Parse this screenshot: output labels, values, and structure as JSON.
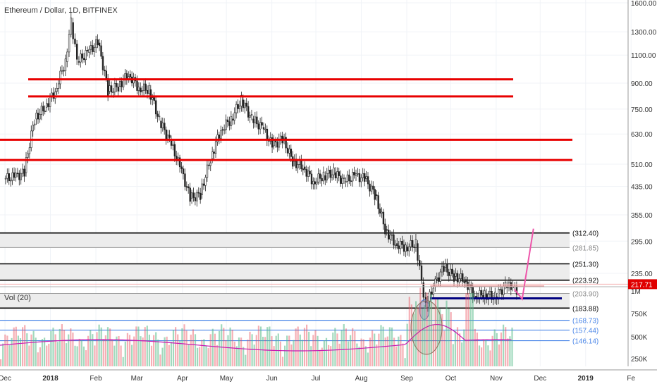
{
  "chart_data": {
    "type": "candlestick",
    "title": "Ethereum / Dollar, 1D, BITFINEX",
    "x_ticks": [
      "Dec",
      "2018",
      "Feb",
      "Mar",
      "Apr",
      "May",
      "Jun",
      "Jul",
      "Aug",
      "Sep",
      "Oct",
      "Nov",
      "Dec",
      "2019",
      "Fe"
    ],
    "price_axis": {
      "scale": "log",
      "ticks": [
        "1600.00",
        "1300.00",
        "1100.00",
        "900.00",
        "750.00",
        "630.00",
        "510.00",
        "435.00",
        "355.00",
        "295.00",
        "235.00"
      ],
      "current_price_label": "217.71"
    },
    "volume_axis": {
      "ticks": [
        "1M",
        "750K",
        "500K",
        "250K"
      ]
    },
    "volume_panel_title": "Vol (20)",
    "price_series": [
      {
        "date": "2017-12-01",
        "o": 460,
        "c": 465
      },
      {
        "date": "2017-12-08",
        "o": 465,
        "c": 480
      },
      {
        "date": "2017-12-15",
        "o": 480,
        "c": 700
      },
      {
        "date": "2017-12-22",
        "o": 700,
        "c": 760
      },
      {
        "date": "2017-12-29",
        "o": 760,
        "c": 850
      },
      {
        "date": "2018-01-05",
        "o": 850,
        "c": 1050
      },
      {
        "date": "2018-01-12",
        "o": 1050,
        "c": 1390
      },
      {
        "date": "2018-01-16",
        "o": 1390,
        "c": 1050
      },
      {
        "date": "2018-01-20",
        "o": 1050,
        "c": 1120
      },
      {
        "date": "2018-01-27",
        "o": 1120,
        "c": 1200
      },
      {
        "date": "2018-02-03",
        "o": 1200,
        "c": 850
      },
      {
        "date": "2018-02-10",
        "o": 850,
        "c": 880
      },
      {
        "date": "2018-02-17",
        "o": 880,
        "c": 960
      },
      {
        "date": "2018-02-24",
        "o": 960,
        "c": 870
      },
      {
        "date": "2018-03-03",
        "o": 870,
        "c": 860
      },
      {
        "date": "2018-03-10",
        "o": 860,
        "c": 690
      },
      {
        "date": "2018-03-17",
        "o": 690,
        "c": 600
      },
      {
        "date": "2018-03-24",
        "o": 600,
        "c": 500
      },
      {
        "date": "2018-03-31",
        "o": 500,
        "c": 400
      },
      {
        "date": "2018-04-07",
        "o": 400,
        "c": 410
      },
      {
        "date": "2018-04-14",
        "o": 410,
        "c": 530
      },
      {
        "date": "2018-04-21",
        "o": 530,
        "c": 650
      },
      {
        "date": "2018-04-28",
        "o": 650,
        "c": 700
      },
      {
        "date": "2018-05-05",
        "o": 700,
        "c": 800
      },
      {
        "date": "2018-05-12",
        "o": 800,
        "c": 700
      },
      {
        "date": "2018-05-19",
        "o": 700,
        "c": 660
      },
      {
        "date": "2018-05-26",
        "o": 660,
        "c": 580
      },
      {
        "date": "2018-06-02",
        "o": 580,
        "c": 610
      },
      {
        "date": "2018-06-09",
        "o": 610,
        "c": 520
      },
      {
        "date": "2018-06-16",
        "o": 520,
        "c": 500
      },
      {
        "date": "2018-06-23",
        "o": 500,
        "c": 450
      },
      {
        "date": "2018-06-30",
        "o": 450,
        "c": 470
      },
      {
        "date": "2018-07-07",
        "o": 470,
        "c": 480
      },
      {
        "date": "2018-07-14",
        "o": 480,
        "c": 450
      },
      {
        "date": "2018-07-21",
        "o": 450,
        "c": 470
      },
      {
        "date": "2018-07-28",
        "o": 470,
        "c": 460
      },
      {
        "date": "2018-08-04",
        "o": 460,
        "c": 410
      },
      {
        "date": "2018-08-11",
        "o": 410,
        "c": 320
      },
      {
        "date": "2018-08-18",
        "o": 320,
        "c": 290
      },
      {
        "date": "2018-08-25",
        "o": 290,
        "c": 283
      },
      {
        "date": "2018-09-01",
        "o": 283,
        "c": 290
      },
      {
        "date": "2018-09-08",
        "o": 290,
        "c": 220
      },
      {
        "date": "2018-09-12",
        "o": 220,
        "c": 185
      },
      {
        "date": "2018-09-15",
        "o": 185,
        "c": 215
      },
      {
        "date": "2018-09-20",
        "o": 215,
        "c": 245
      },
      {
        "date": "2018-09-27",
        "o": 245,
        "c": 230
      },
      {
        "date": "2018-10-04",
        "o": 230,
        "c": 225
      },
      {
        "date": "2018-10-11",
        "o": 225,
        "c": 200
      },
      {
        "date": "2018-10-18",
        "o": 200,
        "c": 203
      },
      {
        "date": "2018-10-25",
        "o": 203,
        "c": 199
      },
      {
        "date": "2018-11-01",
        "o": 199,
        "c": 215
      },
      {
        "date": "2018-11-08",
        "o": 215,
        "c": 212
      },
      {
        "date": "2018-11-12",
        "o": 212,
        "c": 209
      }
    ],
    "horizontal_levels": [
      {
        "label": "312.40",
        "kind": "black"
      },
      {
        "label": "281.85",
        "kind": "gray"
      },
      {
        "label": "251.30",
        "kind": "black"
      },
      {
        "label": "223.92",
        "kind": "black"
      },
      {
        "label": "203.90",
        "kind": "gray"
      },
      {
        "label": "183.88",
        "kind": "black"
      },
      {
        "label": "168.73",
        "kind": "blue"
      },
      {
        "label": "157.44",
        "kind": "blue"
      },
      {
        "label": "146.14",
        "kind": "blue"
      }
    ],
    "colors": {
      "up": "#53b987",
      "down": "#eb4d5c",
      "resistance": "#e80000",
      "support_blue": "#000080",
      "projection": "#ee55aa",
      "volume_ma": "#c61ab3",
      "price_label_bg": "#e00000",
      "blue_level": "#4a86e8"
    }
  }
}
